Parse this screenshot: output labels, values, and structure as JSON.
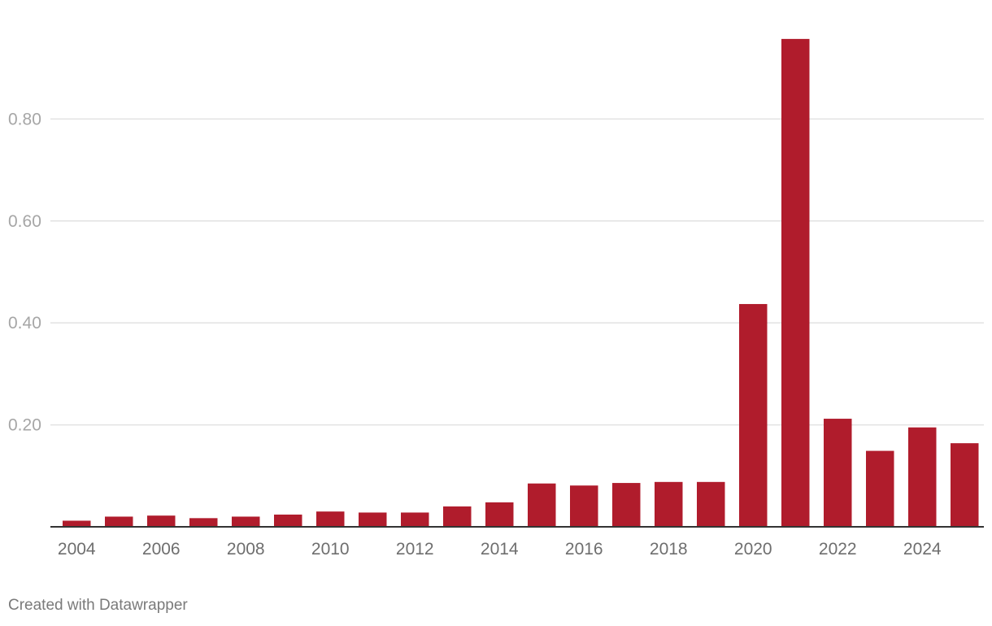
{
  "footer": {
    "credit": "Created with Datawrapper"
  },
  "colors": {
    "bar": "#b01c2c",
    "grid": "#e2e2e2",
    "axis_text": "#a6a6a6",
    "category_text": "#6e6e6e",
    "baseline": "#333333"
  },
  "chart_data": {
    "type": "bar",
    "title": "",
    "xlabel": "",
    "ylabel": "",
    "categories": [
      "2004",
      "2005",
      "2006",
      "2007",
      "2008",
      "2009",
      "2010",
      "2011",
      "2012",
      "2013",
      "2014",
      "2015",
      "2016",
      "2017",
      "2018",
      "2019",
      "2020",
      "2021",
      "2022",
      "2023",
      "2024",
      "2025"
    ],
    "x_tick_labels": [
      "2004",
      "2006",
      "2008",
      "2010",
      "2012",
      "2014",
      "2016",
      "2018",
      "2020",
      "2022",
      "2024"
    ],
    "values": [
      0.012,
      0.02,
      0.022,
      0.017,
      0.02,
      0.024,
      0.03,
      0.028,
      0.028,
      0.04,
      0.048,
      0.085,
      0.081,
      0.086,
      0.088,
      0.088,
      0.437,
      0.957,
      0.212,
      0.149,
      0.195,
      0.164
    ],
    "y_ticks": [
      0.2,
      0.4,
      0.6,
      0.8
    ],
    "y_tick_labels": [
      "0.20",
      "0.40",
      "0.60",
      "0.80"
    ],
    "ylim": [
      0,
      0.96
    ],
    "grid": true,
    "legend": "none"
  }
}
